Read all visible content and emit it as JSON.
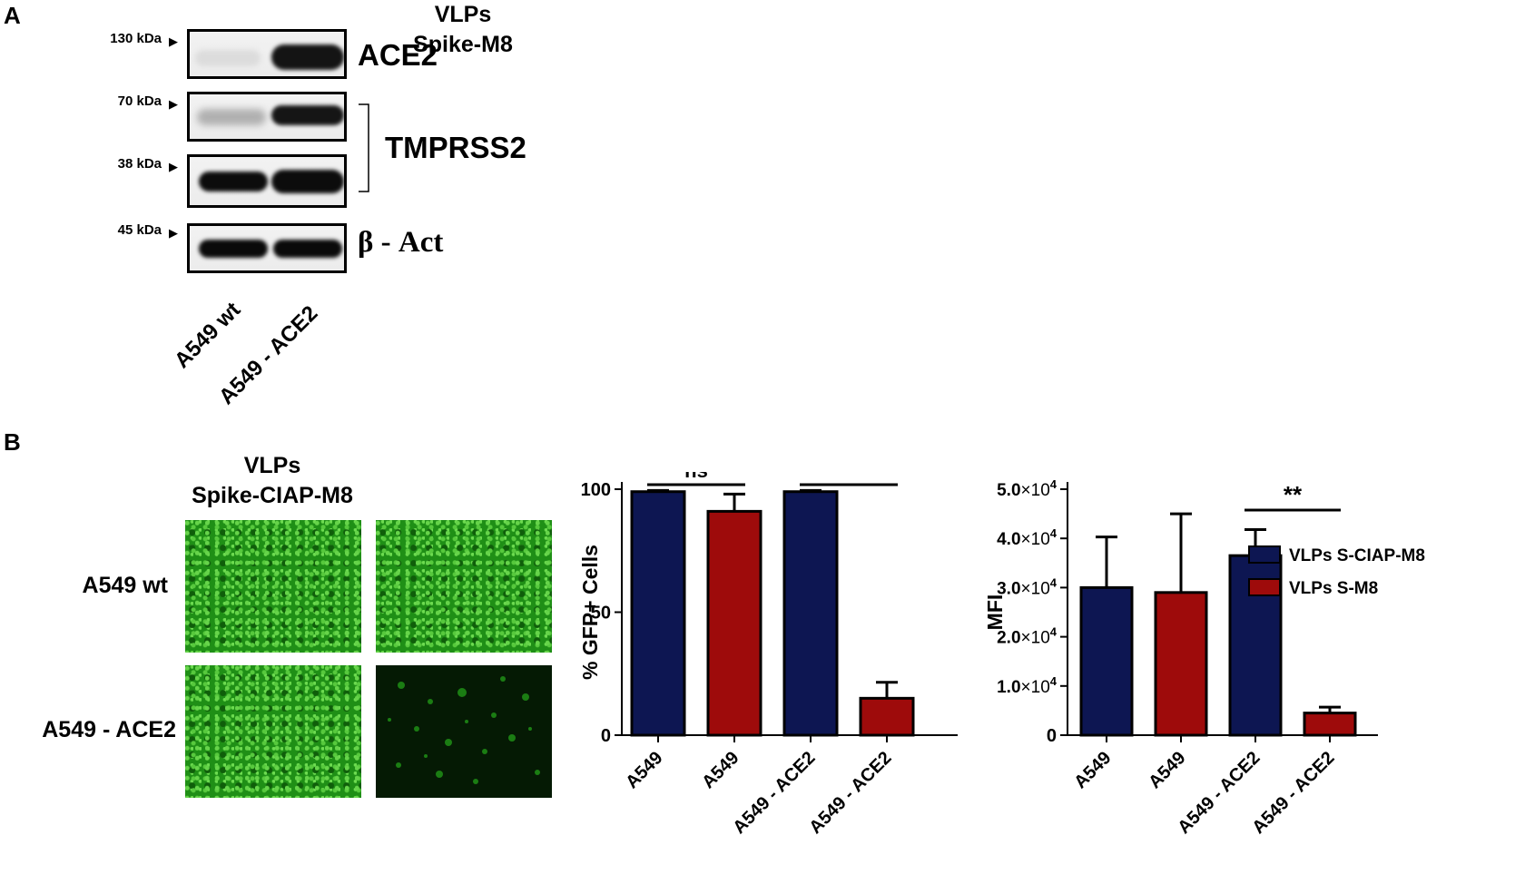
{
  "panel_a": {
    "label": "A",
    "markers": [
      "130 kDa",
      "70 kDa",
      "38 kDa",
      "45 kDa"
    ],
    "proteins": {
      "ace2": "ACE2",
      "tmprss2": "TMPRSS2",
      "actin": "β - Act"
    },
    "lanes": [
      "A549 wt",
      "A549 - ACE2"
    ]
  },
  "panel_b": {
    "label": "B",
    "columns": [
      {
        "line1": "VLPs",
        "line2": "Spike-CIAP-M8"
      },
      {
        "line1": "VLPs",
        "line2": "Spike-M8"
      }
    ],
    "rows": [
      "A549 wt",
      "A549 - ACE2"
    ]
  },
  "colors": {
    "navy": "#0d1652",
    "red": "#9e0b0b",
    "gfp_green": "#2aa31d"
  },
  "chart_data": [
    {
      "type": "bar",
      "categories": [
        "A549",
        "A549",
        "A549 - ACE2",
        "A549 - ACE2"
      ],
      "values": [
        99,
        91,
        99,
        15
      ],
      "errors": [
        0.5,
        7,
        0.5,
        6.5
      ],
      "bar_series": [
        "VLPs S-CIAP-M8",
        "VLPs S-M8",
        "VLPs S-CIAP-M8",
        "VLPs S-M8"
      ],
      "ylabel": "% GFP+ Cells",
      "ylim": [
        0,
        100
      ],
      "yticks": [
        0,
        50,
        100
      ],
      "ytick_labels": [
        "0",
        "50",
        "100"
      ],
      "significance": [
        {
          "between": [
            0,
            1
          ],
          "label": "ns"
        },
        {
          "between": [
            2,
            3
          ],
          "label": "****"
        }
      ]
    },
    {
      "type": "bar",
      "categories": [
        "A549",
        "A549",
        "A549 - ACE2",
        "A549 - ACE2"
      ],
      "values": [
        30000,
        29000,
        36500,
        4500
      ],
      "errors": [
        10300,
        16000,
        5300,
        1200
      ],
      "bar_series": [
        "VLPs S-CIAP-M8",
        "VLPs S-M8",
        "VLPs S-CIAP-M8",
        "VLPs S-M8"
      ],
      "ylabel": "MFI",
      "ylim": [
        0,
        50000
      ],
      "yticks": [
        0,
        10000,
        20000,
        30000,
        40000,
        50000
      ],
      "ytick_mantissas": [
        "0",
        "1.0",
        "2.0",
        "3.0",
        "4.0",
        "5.0"
      ],
      "ytick_times": "×10",
      "ytick_exponent": "4",
      "legend": [
        {
          "name": "VLPs S-CIAP-M8",
          "color": "#0d1652"
        },
        {
          "name": "VLPs S-M8",
          "color": "#9e0b0b"
        }
      ],
      "legend_position": "right",
      "significance": [
        {
          "between": [
            2,
            3
          ],
          "label": "**"
        }
      ]
    }
  ]
}
